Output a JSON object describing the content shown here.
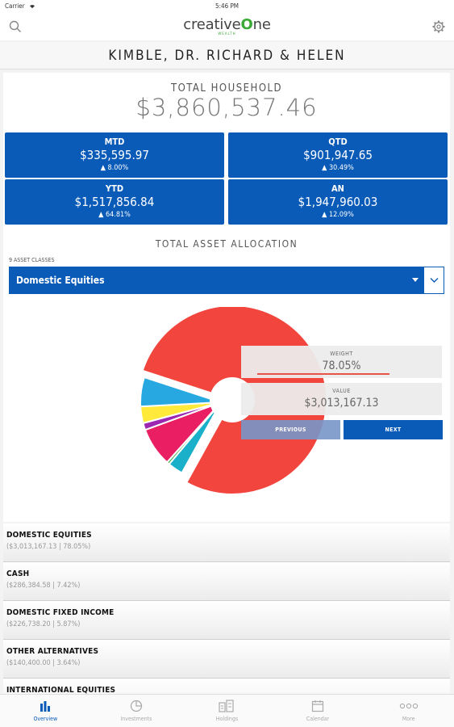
{
  "status_bar": {
    "carrier": "Carrier",
    "time": "5:46 PM"
  },
  "nav": {
    "logo_text_left": "creative",
    "logo_text_one": "O",
    "logo_text_right": "ne",
    "logo_sub": "WEALTH"
  },
  "client_name": "KIMBLE, DR. RICHARD & HELEN",
  "household": {
    "label": "TOTAL HOUSEHOLD",
    "value": "$3,860,537.46"
  },
  "performance": [
    {
      "label": "MTD",
      "value": "$335,595.97",
      "change": "▲ 8.00%"
    },
    {
      "label": "QTD",
      "value": "$901,947.65",
      "change": "▲ 30.49%"
    },
    {
      "label": "YTD",
      "value": "$1,517,856.84",
      "change": "▲ 64.81%"
    },
    {
      "label": "AN",
      "value": "$1,947,960.03",
      "change": "▲ 12.09%"
    }
  ],
  "allocation": {
    "title": "TOTAL ASSET ALLOCATION",
    "count_label": "9 ASSET CLASSES",
    "selected": "Domestic Equities",
    "tooltip": {
      "weight_label": "WEIGHT",
      "weight_value": "78.05%",
      "weight_fraction": 0.7805,
      "value_label": "VALUE",
      "value_value": "$3,013,167.13",
      "previous_label": "PREVIOUS",
      "next_label": "NEXT"
    },
    "colors": {
      "domestic_equities": "#f2453d",
      "cash": "#27a8e0",
      "domestic_fixed_income": "#ffea3b",
      "other_alternatives": "#9c27b0",
      "international_equities": "#e91e63",
      "other_1": "#4caf50",
      "other_2": "#1ab0c9",
      "accent_blue": "#0a5bb8"
    }
  },
  "asset_list": [
    {
      "name": "DOMESTIC EQUITIES",
      "detail": "($3,013,167.13 | 78.05%)"
    },
    {
      "name": "CASH",
      "detail": "($286,384.58 | 7.42%)"
    },
    {
      "name": "DOMESTIC FIXED INCOME",
      "detail": "($226,738.20 | 5.87%)"
    },
    {
      "name": "OTHER ALTERNATIVES",
      "detail": "($140,400.00 | 3.64%)"
    },
    {
      "name": "INTERNATIONAL EQUITIES",
      "detail": ""
    }
  ],
  "tabs": [
    {
      "label": "Overview",
      "icon": "bar-chart-icon",
      "active": true
    },
    {
      "label": "Investments",
      "icon": "pie-chart-icon",
      "active": false
    },
    {
      "label": "Holdings",
      "icon": "holdings-icon",
      "active": false
    },
    {
      "label": "Calendar",
      "icon": "calendar-icon",
      "active": false
    },
    {
      "label": "More",
      "icon": "more-icon",
      "active": false
    }
  ]
}
